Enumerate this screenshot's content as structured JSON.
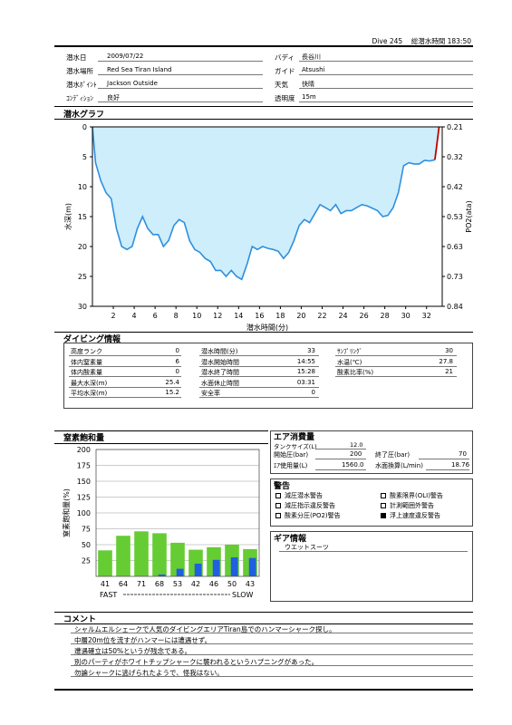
{
  "header": {
    "dive_label": "Dive",
    "dive_no": "245",
    "total_time_label": "総潜水時間",
    "total_time": "183:50"
  },
  "info": {
    "left": [
      {
        "label": "潜水日",
        "value": "2009/07/22"
      },
      {
        "label": "潜水場所",
        "value": "Red Sea  Tiran  Island"
      },
      {
        "label": "潜水ﾎﾟｲﾝﾄ",
        "value": "Jackson  Outside"
      },
      {
        "label": "ｺﾝﾃﾞｨｼｮﾝ",
        "value": "良好"
      }
    ],
    "right": [
      {
        "label": "バディ",
        "value": "長谷川"
      },
      {
        "label": "ガイド",
        "value": "Atsushi"
      },
      {
        "label": "天気",
        "value": "快晴"
      },
      {
        "label": "透明度",
        "value": "15m"
      }
    ]
  },
  "dive_graph": {
    "title": "潜水グラフ",
    "xlabel": "潜水時間(分)",
    "ylabel_left": "水深(m)",
    "ylabel_right": "PO2(ata)",
    "x_ticks": [
      "2",
      "4",
      "6",
      "8",
      "10",
      "12",
      "14",
      "16",
      "18",
      "20",
      "22",
      "24",
      "26",
      "28",
      "30",
      "32"
    ],
    "y_ticks_left": [
      "0",
      "5",
      "10",
      "15",
      "20",
      "25",
      "30"
    ],
    "y_ticks_right": [
      "0.21",
      "0.32",
      "0.42",
      "0.53",
      "0.63",
      "0.73",
      "0.84"
    ],
    "colors": {
      "fill": "#cdeefa",
      "line": "#2e8fe0",
      "ascent": "#c00000"
    }
  },
  "chart_data": {
    "type": "area",
    "xlabel": "潜水時間(分)",
    "ylabel": "水深(m)",
    "xlim": [
      0,
      33.5
    ],
    "ylim": [
      30,
      0
    ],
    "x": [
      0,
      0.3,
      0.8,
      1.3,
      1.8,
      2.3,
      2.8,
      3.3,
      3.8,
      4.3,
      4.8,
      5.3,
      5.8,
      6.3,
      6.8,
      7.3,
      7.8,
      8.3,
      8.8,
      9.3,
      9.8,
      10.3,
      10.8,
      11.3,
      11.8,
      12.3,
      12.8,
      13.3,
      13.8,
      14.3,
      14.8,
      15.3,
      15.8,
      16.3,
      16.8,
      17.3,
      17.8,
      18.3,
      18.8,
      19.3,
      19.8,
      20.3,
      20.8,
      21.3,
      21.8,
      22.3,
      22.8,
      23.3,
      23.8,
      24.3,
      24.8,
      25.3,
      25.8,
      26.3,
      26.8,
      27.3,
      27.8,
      28.3,
      28.8,
      29.3,
      29.8,
      30.3,
      30.8,
      31.3,
      31.8,
      32.3,
      32.8,
      33.2,
      33.5
    ],
    "depth": [
      0,
      6,
      9,
      11,
      12,
      17,
      20,
      20.5,
      20,
      17,
      15,
      17,
      18,
      18,
      20,
      19,
      16.5,
      15.5,
      16,
      19,
      20.5,
      21,
      22,
      22.5,
      24,
      24,
      25,
      24,
      25,
      25.5,
      23,
      20,
      20.5,
      20,
      20.3,
      20.5,
      20.8,
      22,
      21,
      19,
      16.5,
      15.5,
      16,
      14.5,
      13,
      13.5,
      14,
      13,
      14.5,
      14,
      14,
      13.5,
      13,
      13.2,
      13.6,
      14,
      15,
      14.8,
      13.5,
      11,
      6.5,
      6,
      6.2,
      6.2,
      5.6,
      5.7,
      5.5,
      0,
      0
    ]
  },
  "diving_info": {
    "title": "ダイビング情報",
    "col1": [
      {
        "label": "高度ランク",
        "value": "0"
      },
      {
        "label": "体内窒素量",
        "value": "6"
      },
      {
        "label": "体内酸素量",
        "value": "0"
      },
      {
        "label": "最大水深(m)",
        "value": "25.4"
      },
      {
        "label": "平均水深(m)",
        "value": "15.2"
      }
    ],
    "col2": [
      {
        "label": "潜水時間(分)",
        "value": "33"
      },
      {
        "label": "潜水開始時間",
        "value": "14:55"
      },
      {
        "label": "潜水終了時間",
        "value": "15:28"
      },
      {
        "label": "水面休止時間",
        "value": "03:31"
      },
      {
        "label": "安全率",
        "value": "0"
      }
    ],
    "col3": [
      {
        "label": "ｻﾝﾌﾟﾘﾝｸﾞ",
        "value": "30"
      },
      {
        "label": "水温(℃)",
        "value": "27.8"
      },
      {
        "label": "酸素比率(%)",
        "value": "21"
      }
    ]
  },
  "nitrogen": {
    "title": "窒素飽和量",
    "ylabel": "窒素飽和量(%)",
    "y_ticks": [
      "200",
      "175",
      "150",
      "125",
      "100",
      "75",
      "50",
      "25"
    ],
    "ylim": [
      0,
      200
    ],
    "x_labels": [
      "41",
      "64",
      "71",
      "68",
      "53",
      "42",
      "46",
      "50",
      "43"
    ],
    "values": [
      41,
      64,
      71,
      68,
      53,
      42,
      46,
      50,
      43
    ],
    "blue_values": [
      0,
      0,
      0,
      3,
      12,
      20,
      26,
      30,
      29
    ],
    "fast_label": "FAST",
    "slow_label": "SLOW",
    "colors": {
      "green": "#66cc33",
      "blue": "#1f5fe0"
    }
  },
  "air": {
    "title": "エア消費量",
    "tank_label": "タンクサイズ(L)",
    "tank": "12.0",
    "start_label": "開始圧(bar)",
    "start": "200",
    "end_label": "終了圧(bar)",
    "end": "70",
    "used_label": "ｴｱ使用量(L)",
    "used": "1560.0",
    "rate_label": "水面換算(L/min)",
    "rate": "18.76"
  },
  "warnings": {
    "title": "警告",
    "items": [
      {
        "label": "減圧潜水警告",
        "checked": false
      },
      {
        "label": "酸素限界(OLI)警告",
        "checked": false
      },
      {
        "label": "減圧指示違反警告",
        "checked": false
      },
      {
        "label": "計測範囲外警告",
        "checked": false
      },
      {
        "label": "酸素分圧(PO2)警告",
        "checked": false
      },
      {
        "label": "浮上速度違反警告",
        "checked": true
      }
    ]
  },
  "gear": {
    "title": "ギア情報",
    "value": "ウエットスーツ"
  },
  "comment": {
    "title": "コメント",
    "lines": [
      "シャルムエルシェークで人気のダイビングエリアTiran島でのハンマーシャーク探し。",
      "中層20m位を流すがハンマーには遭遇せず。",
      "遭遇確立は50%というが残念である。",
      "別のパーティがホワイトチップシャークに襲われるというハプニングがあった。",
      "勿論シャークに逃げられたようで、怪我はない。"
    ]
  }
}
